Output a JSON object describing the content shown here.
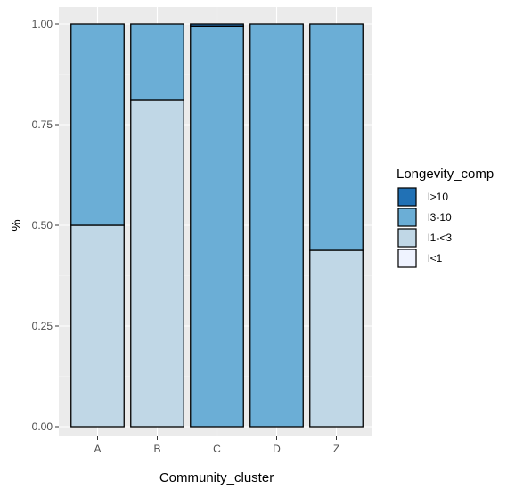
{
  "chart_data": {
    "type": "bar",
    "stacked": true,
    "categories": [
      "A",
      "B",
      "C",
      "D",
      "Z"
    ],
    "series": [
      {
        "name": "l<1",
        "color": "#eff3ff",
        "values": [
          0,
          0,
          0,
          0,
          0
        ]
      },
      {
        "name": "l1-<3",
        "color": "#c0d7e6",
        "values": [
          0.5,
          0.812,
          0.0,
          0.0,
          0.438
        ]
      },
      {
        "name": "l3-10",
        "color": "#6baed6",
        "values": [
          0.5,
          0.188,
          0.995,
          1.0,
          0.562
        ]
      },
      {
        "name": "l>10",
        "color": "#2171b5",
        "values": [
          0,
          0,
          0.005,
          0,
          0
        ]
      }
    ],
    "xlabel": "Community_cluster",
    "ylabel": "%",
    "ylim": [
      0,
      1
    ],
    "yticks": [
      "0.00",
      "0.25",
      "0.50",
      "0.75",
      "1.00"
    ],
    "grid": true,
    "panel_background": "#ebebeb",
    "legend": {
      "title": "Longevity_comp",
      "position": "right",
      "entries": [
        {
          "label": "l>10",
          "color": "#2171b5"
        },
        {
          "label": "l3-10",
          "color": "#6baed6"
        },
        {
          "label": "l1-<3",
          "color": "#c0d7e6"
        },
        {
          "label": "l<1",
          "color": "#eff3ff"
        }
      ]
    }
  }
}
